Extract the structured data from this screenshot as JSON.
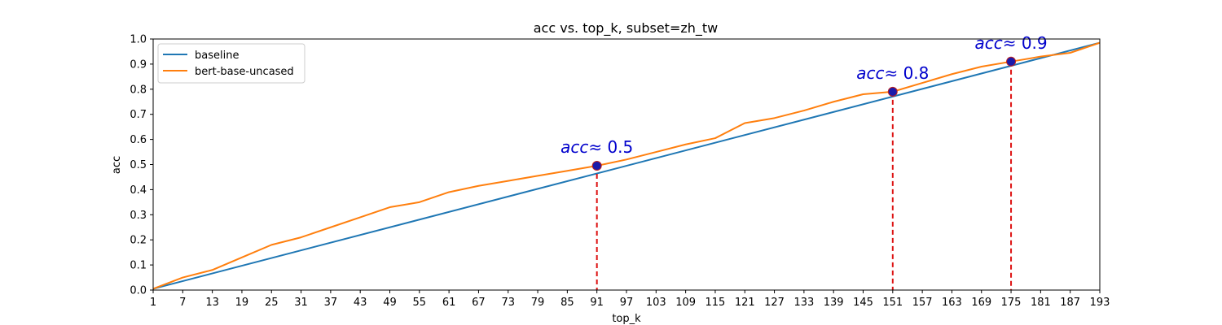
{
  "chart_data": {
    "type": "line",
    "title": "acc vs. top_k, subset=zh_tw",
    "xlabel": "top_k",
    "ylabel": "acc",
    "xlim": [
      1,
      193
    ],
    "ylim": [
      0.0,
      1.0
    ],
    "xticks": [
      "1",
      "7",
      "13",
      "19",
      "25",
      "31",
      "37",
      "43",
      "49",
      "55",
      "61",
      "67",
      "73",
      "79",
      "85",
      "91",
      "97",
      "103",
      "109",
      "115",
      "121",
      "127",
      "133",
      "139",
      "145",
      "151",
      "157",
      "163",
      "169",
      "175",
      "181",
      "187",
      "193"
    ],
    "yticks": [
      "0.0",
      "0.1",
      "0.2",
      "0.3",
      "0.4",
      "0.5",
      "0.6",
      "0.7",
      "0.8",
      "0.9",
      "1.0"
    ],
    "grid": false,
    "legend_position": "top-left",
    "series": [
      {
        "name": "baseline",
        "color": "#1f77b4",
        "x": [
          1,
          193
        ],
        "y": [
          0.005,
          0.985
        ]
      },
      {
        "name": "bert-base-uncased",
        "color": "#ff7f0e",
        "x": [
          1,
          7,
          13,
          19,
          25,
          31,
          37,
          43,
          49,
          55,
          61,
          67,
          73,
          79,
          85,
          91,
          97,
          103,
          109,
          115,
          121,
          127,
          133,
          139,
          145,
          151,
          157,
          163,
          169,
          175,
          181,
          187,
          193
        ],
        "y": [
          0.005,
          0.05,
          0.08,
          0.13,
          0.18,
          0.21,
          0.25,
          0.29,
          0.33,
          0.35,
          0.39,
          0.415,
          0.435,
          0.455,
          0.475,
          0.495,
          0.52,
          0.55,
          0.58,
          0.605,
          0.665,
          0.685,
          0.715,
          0.75,
          0.78,
          0.79,
          0.825,
          0.86,
          0.89,
          0.91,
          0.93,
          0.945,
          0.985
        ]
      }
    ],
    "annotations": [
      {
        "x": 91,
        "y": 0.495,
        "var": "acc",
        "label": "≈ 0.5"
      },
      {
        "x": 151,
        "y": 0.79,
        "var": "acc",
        "label": "≈ 0.8"
      },
      {
        "x": 175,
        "y": 0.91,
        "var": "acc",
        "label": "≈ 0.9"
      }
    ],
    "annotation_color": "#0000cc",
    "marker_color": "#1a1aaa",
    "dropline_color": "#dd1111"
  }
}
